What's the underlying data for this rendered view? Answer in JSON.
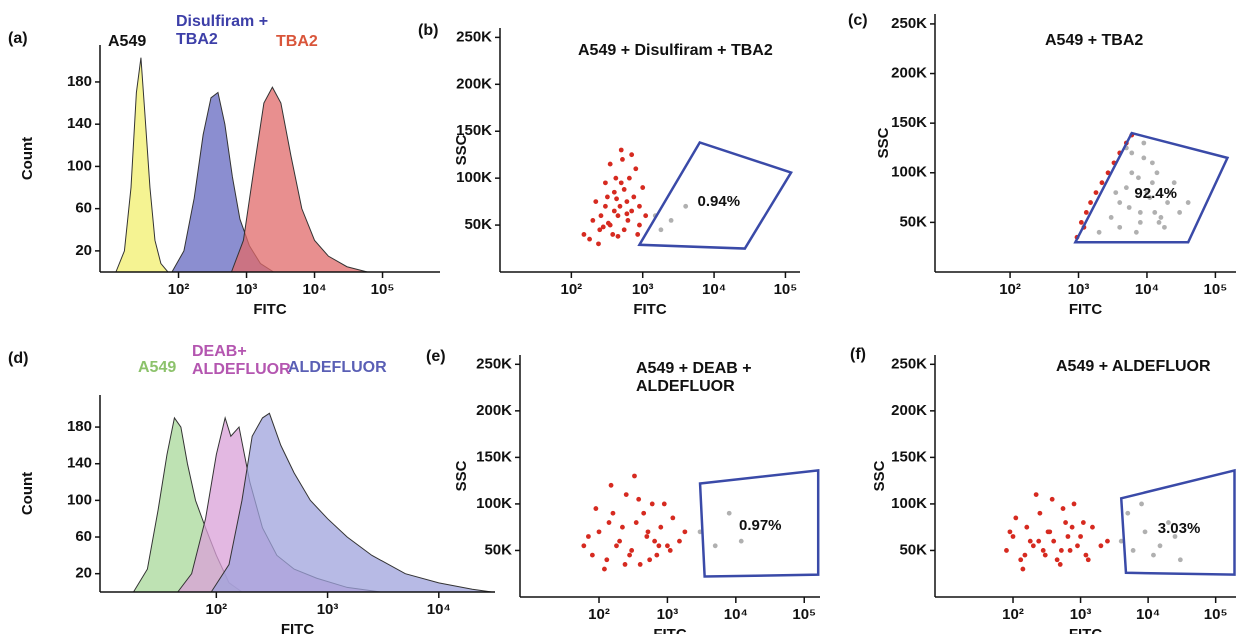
{
  "chart_data": [
    {
      "panel": "(a)",
      "type": "area",
      "xlabel": "FITC",
      "ylabel": "Count",
      "xscale": "log",
      "xlim": [
        7,
        700000
      ],
      "ylim": [
        0,
        215
      ],
      "xticks": [
        {
          "value": 100,
          "label": "10²"
        },
        {
          "value": 1000,
          "label": "10³"
        },
        {
          "value": 10000,
          "label": "10⁴"
        },
        {
          "value": 100000,
          "label": "10⁵"
        }
      ],
      "yticks": [
        20,
        60,
        100,
        140,
        180
      ],
      "series": [
        {
          "name": "A549",
          "color": "#f2ef6e",
          "label_color": "#111111",
          "x": [
            12,
            16,
            20,
            24,
            28,
            32,
            38,
            45,
            55,
            70
          ],
          "values": [
            0,
            20,
            80,
            170,
            203,
            150,
            80,
            30,
            8,
            0
          ]
        },
        {
          "name": "Disulfiram + TBA2",
          "color": "#6468c0",
          "label_color": "#3d3fa8",
          "x": [
            80,
            120,
            170,
            230,
            300,
            380,
            480,
            620,
            800,
            1100,
            1600,
            2500
          ],
          "values": [
            0,
            20,
            70,
            130,
            165,
            170,
            140,
            90,
            50,
            25,
            8,
            0
          ]
        },
        {
          "name": "TBA2",
          "color": "#e06a6a",
          "label_color": "#d9553a",
          "x": [
            600,
            900,
            1300,
            1800,
            2400,
            3200,
            4500,
            6500,
            10000,
            16000,
            30000,
            60000
          ],
          "values": [
            0,
            30,
            100,
            160,
            175,
            160,
            110,
            60,
            30,
            15,
            5,
            0
          ]
        }
      ]
    },
    {
      "panel": "(b)",
      "type": "scatter",
      "title": "A549 + Disulfiram + TBA2",
      "xlabel": "FITC",
      "ylabel": "SSC",
      "xscale": "log",
      "xlim": [
        10,
        160000
      ],
      "ylim": [
        0,
        260000
      ],
      "xticks": [
        {
          "value": 100,
          "label": "10²"
        },
        {
          "value": 1000,
          "label": "10³"
        },
        {
          "value": 10000,
          "label": "10⁴"
        },
        {
          "value": 100000,
          "label": "10⁵"
        }
      ],
      "yticks": [
        {
          "value": 50000,
          "label": "50K"
        },
        {
          "value": 100000,
          "label": "100K"
        },
        {
          "value": 150000,
          "label": "150K"
        },
        {
          "value": 200000,
          "label": "200K"
        },
        {
          "value": 250000,
          "label": "250K"
        }
      ],
      "series": [
        {
          "color": "#d62a20",
          "x": [
            150,
            200,
            250,
            300,
            350,
            400,
            450,
            500,
            550,
            600,
            700,
            800,
            900,
            1000,
            180,
            260,
            320,
            380,
            420,
            480,
            520,
            620,
            750,
            850,
            220,
            300,
            400,
            500,
            650,
            280,
            350,
            450,
            550,
            700,
            900,
            1100,
            240,
            330,
            430,
            600
          ],
          "values": [
            40000,
            55000,
            45000,
            70000,
            50000,
            85000,
            60000,
            95000,
            45000,
            75000,
            65000,
            110000,
            50000,
            90000,
            35000,
            60000,
            80000,
            40000,
            100000,
            70000,
            120000,
            55000,
            80000,
            40000,
            75000,
            95000,
            65000,
            130000,
            100000,
            48000,
            115000,
            38000,
            88000,
            125000,
            70000,
            60000,
            30000,
            52000,
            78000,
            62000
          ]
        },
        {
          "color": "#b0b0b0",
          "x": [
            1500,
            2500,
            4000,
            1800
          ],
          "values": [
            60000,
            55000,
            70000,
            45000
          ]
        }
      ],
      "gate": {
        "color": "#3a4aa8",
        "label": "0.94%",
        "x": [
          900,
          6300,
          120000,
          27000
        ],
        "y": [
          29000,
          138000,
          106000,
          25000
        ]
      }
    },
    {
      "panel": "(c)",
      "type": "scatter",
      "title": "A549  + TBA2",
      "xlabel": "FITC",
      "ylabel": "SSC",
      "xscale": "log",
      "xlim": [
        8,
        200000
      ],
      "ylim": [
        0,
        260000
      ],
      "xticks": [
        {
          "value": 100,
          "label": "10²"
        },
        {
          "value": 1000,
          "label": "10³"
        },
        {
          "value": 10000,
          "label": "10⁴"
        },
        {
          "value": 100000,
          "label": "10⁵"
        }
      ],
      "yticks": [
        {
          "value": 50000,
          "label": "50K"
        },
        {
          "value": 100000,
          "label": "100K"
        },
        {
          "value": 150000,
          "label": "150K"
        },
        {
          "value": 200000,
          "label": "200K"
        },
        {
          "value": 250000,
          "label": "250K"
        }
      ],
      "series": [
        {
          "color": "#b0b0b0",
          "x": [
            2000,
            3000,
            4000,
            5000,
            6000,
            8000,
            10000,
            12000,
            15000,
            20000,
            25000,
            30000,
            4000,
            6000,
            9000,
            14000,
            18000,
            3500,
            5500,
            7500,
            11000,
            16000,
            22000,
            40000,
            7000,
            9000,
            13000,
            5000,
            8000,
            12000
          ],
          "values": [
            40000,
            55000,
            70000,
            85000,
            100000,
            60000,
            80000,
            110000,
            50000,
            70000,
            90000,
            60000,
            45000,
            120000,
            130000,
            100000,
            45000,
            80000,
            65000,
            95000,
            75000,
            55000,
            80000,
            70000,
            40000,
            115000,
            60000,
            125000,
            50000,
            90000
          ]
        },
        {
          "color": "#d62a20",
          "x": [
            950,
            1100,
            1300,
            1500,
            1800,
            2200,
            2700,
            3300,
            4000,
            5000,
            6000,
            1200
          ],
          "values": [
            35000,
            50000,
            60000,
            70000,
            80000,
            90000,
            100000,
            110000,
            120000,
            130000,
            138000,
            45000
          ]
        }
      ],
      "gate": {
        "color": "#3a4aa8",
        "label": "92.4%",
        "x": [
          900,
          6000,
          150000,
          40000
        ],
        "y": [
          30000,
          140000,
          115000,
          30000
        ]
      }
    },
    {
      "panel": "(d)",
      "type": "area",
      "xlabel": "FITC",
      "ylabel": "Count",
      "xscale": "log",
      "xlim": [
        9,
        32000
      ],
      "ylim": [
        0,
        215
      ],
      "xticks": [
        {
          "value": 100,
          "label": "10²"
        },
        {
          "value": 1000,
          "label": "10³"
        },
        {
          "value": 10000,
          "label": "10⁴"
        }
      ],
      "yticks": [
        20,
        60,
        100,
        140,
        180
      ],
      "series": [
        {
          "name": "A549",
          "color": "#a8d89a",
          "label_color": "#8cc26b",
          "x": [
            18,
            24,
            30,
            36,
            42,
            48,
            55,
            65,
            80,
            100,
            130,
            170
          ],
          "values": [
            0,
            25,
            90,
            150,
            190,
            180,
            140,
            100,
            70,
            40,
            10,
            0
          ]
        },
        {
          "name": "DEAB+ ALDEFLUOR",
          "color": "#d9a0d8",
          "label_color": "#b456b0",
          "x": [
            45,
            60,
            80,
            100,
            120,
            135,
            160,
            200,
            260,
            350,
            500,
            800,
            1500,
            3000
          ],
          "values": [
            0,
            20,
            80,
            150,
            190,
            170,
            180,
            120,
            70,
            40,
            25,
            15,
            5,
            0
          ]
        },
        {
          "name": "ALDEFLUOR",
          "color": "#9fa3dc",
          "label_color": "#5a5fb5",
          "x": [
            90,
            130,
            170,
            210,
            260,
            300,
            380,
            500,
            700,
            1000,
            1500,
            2500,
            5000,
            10000,
            20000,
            30000
          ],
          "values": [
            0,
            30,
            100,
            170,
            190,
            195,
            160,
            130,
            100,
            80,
            60,
            40,
            20,
            10,
            3,
            0
          ]
        }
      ]
    },
    {
      "panel": "(e)",
      "type": "scatter",
      "title": "A549 + DEAB + ALDEFLUOR",
      "xlabel": "FITC",
      "ylabel": "SSC",
      "xscale": "log",
      "xlim": [
        7,
        170000
      ],
      "ylim": [
        0,
        260000
      ],
      "xticks": [
        {
          "value": 100,
          "label": "10²"
        },
        {
          "value": 1000,
          "label": "10³"
        },
        {
          "value": 10000,
          "label": "10⁴"
        },
        {
          "value": 100000,
          "label": "10⁵"
        }
      ],
      "yticks": [
        {
          "value": 50000,
          "label": "50K"
        },
        {
          "value": 100000,
          "label": "100K"
        },
        {
          "value": 150000,
          "label": "150K"
        },
        {
          "value": 200000,
          "label": "200K"
        },
        {
          "value": 250000,
          "label": "250K"
        }
      ],
      "series": [
        {
          "color": "#d62a20",
          "x": [
            60,
            80,
            100,
            130,
            160,
            200,
            250,
            300,
            350,
            400,
            500,
            600,
            700,
            800,
            1000,
            1200,
            1500,
            1800,
            90,
            120,
            150,
            180,
            220,
            280,
            330,
            450,
            550,
            650,
            900,
            1100,
            70,
            140,
            240,
            380,
            520,
            750
          ],
          "values": [
            55000,
            45000,
            70000,
            40000,
            90000,
            60000,
            110000,
            50000,
            80000,
            35000,
            65000,
            100000,
            45000,
            75000,
            55000,
            85000,
            60000,
            70000,
            95000,
            30000,
            120000,
            55000,
            75000,
            45000,
            130000,
            90000,
            40000,
            60000,
            100000,
            50000,
            65000,
            80000,
            35000,
            105000,
            70000,
            55000
          ]
        },
        {
          "color": "#b0b0b0",
          "x": [
            3000,
            5000,
            8000,
            12000
          ],
          "values": [
            70000,
            55000,
            90000,
            60000
          ]
        }
      ],
      "gate": {
        "color": "#3a4aa8",
        "label": "0.97%",
        "x": [
          3500,
          3000,
          160000,
          160000
        ],
        "y": [
          22000,
          122000,
          136000,
          24000
        ]
      }
    },
    {
      "panel": "(f)",
      "type": "scatter",
      "title": "A549 + ALDEFLUOR",
      "xlabel": "FITC",
      "ylabel": "SSC",
      "xscale": "log",
      "xlim": [
        7,
        200000
      ],
      "ylim": [
        0,
        260000
      ],
      "xticks": [
        {
          "value": 100,
          "label": "10²"
        },
        {
          "value": 1000,
          "label": "10³"
        },
        {
          "value": 10000,
          "label": "10⁴"
        },
        {
          "value": 100000,
          "label": "10⁵"
        }
      ],
      "yticks": [
        {
          "value": 50000,
          "label": "50K"
        },
        {
          "value": 100000,
          "label": "100K"
        },
        {
          "value": 150000,
          "label": "150K"
        },
        {
          "value": 200000,
          "label": "200K"
        },
        {
          "value": 250000,
          "label": "250K"
        }
      ],
      "series": [
        {
          "color": "#d62a20",
          "x": [
            80,
            100,
            130,
            160,
            200,
            250,
            300,
            350,
            400,
            500,
            600,
            700,
            800,
            1000,
            1200,
            1500,
            2000,
            2500,
            110,
            140,
            180,
            220,
            280,
            330,
            450,
            550,
            650,
            900,
            1100,
            90,
            150,
            240,
            380,
            520,
            750,
            1300
          ],
          "values": [
            50000,
            65000,
            40000,
            75000,
            55000,
            90000,
            45000,
            70000,
            60000,
            35000,
            80000,
            50000,
            100000,
            65000,
            45000,
            75000,
            55000,
            60000,
            85000,
            30000,
            60000,
            110000,
            50000,
            70000,
            40000,
            95000,
            65000,
            55000,
            80000,
            70000,
            45000,
            60000,
            105000,
            50000,
            75000,
            40000
          ]
        },
        {
          "color": "#b0b0b0",
          "x": [
            4000,
            6000,
            9000,
            15000,
            25000,
            5000,
            12000,
            20000,
            8000,
            30000
          ],
          "values": [
            60000,
            50000,
            70000,
            55000,
            65000,
            90000,
            45000,
            80000,
            100000,
            40000
          ]
        }
      ],
      "gate": {
        "color": "#3a4aa8",
        "label": "3.03%",
        "x": [
          4700,
          4000,
          190000,
          190000
        ],
        "y": [
          26000,
          106000,
          136000,
          24000
        ]
      }
    }
  ]
}
